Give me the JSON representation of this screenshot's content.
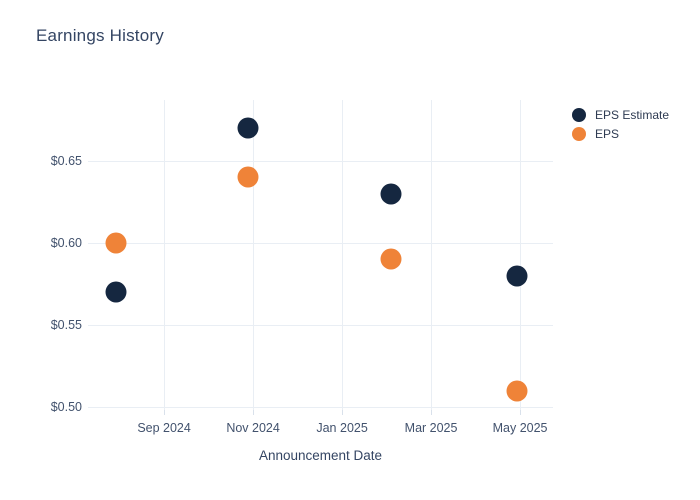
{
  "chart_data": {
    "type": "scatter",
    "title": "Earnings History",
    "xlabel": "Announcement Date",
    "ylabel": "",
    "grid": true,
    "legend_position": "outside-right-top",
    "x_axis_scale": "months relative to Sep 2024 tick",
    "xlim": [
      -1.71,
      8.74
    ],
    "ylim": [
      0.4982,
      0.6872
    ],
    "x_ticks": {
      "positions": [
        0,
        2,
        4,
        6,
        8
      ],
      "labels": [
        "Sep 2024",
        "Nov 2024",
        "Jan 2025",
        "Mar 2025",
        "May 2025"
      ]
    },
    "y_ticks": {
      "positions": [
        0.5,
        0.55,
        0.6,
        0.65
      ],
      "labels": [
        "$0.50",
        "$0.55",
        "$0.60",
        "$0.65"
      ]
    },
    "x": [
      -1.08,
      1.89,
      5.1,
      7.93
    ],
    "series": [
      {
        "name": "EPS Estimate",
        "color": "#152740",
        "values": [
          0.57,
          0.67,
          0.63,
          0.58
        ]
      },
      {
        "name": "EPS",
        "color": "#EF8338",
        "values": [
          0.6,
          0.64,
          0.59,
          0.51
        ]
      }
    ],
    "grid_color": "#E9EEF4",
    "tick_mark_color": "#D9E1EB",
    "marker_diameter_px": 21
  }
}
